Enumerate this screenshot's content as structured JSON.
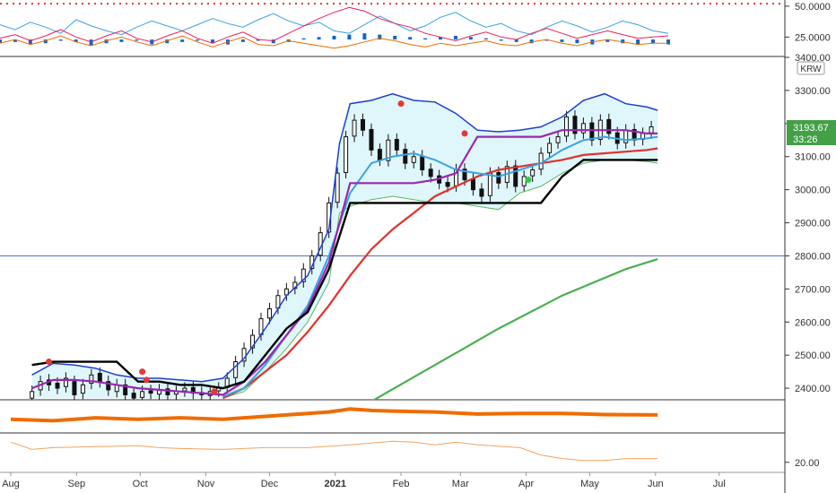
{
  "colors": {
    "blue_band": "#1f3fd1",
    "red_ma": "#e0312d",
    "green_ma": "#4caf50",
    "purple": "#9b27b0",
    "black": "#000000",
    "cloud": "#dff6fb",
    "cyan": "#3ba3e0",
    "orange": "#ef6c00",
    "price_badge": "#43a047",
    "hline": "#5c6bc0",
    "red_dot": "#e53935",
    "green_dot": "#2ecc40"
  },
  "chart_data": [
    {
      "type": "line",
      "panel": "oscillator-top",
      "ytick_labels": [
        "50.0000",
        "25.0000"
      ],
      "ytick_values": [
        50,
        25
      ],
      "ylim": [
        10,
        55
      ],
      "series": [
        {
          "color": "#3ba3e0",
          "values": [
            35,
            31,
            37,
            33,
            28,
            39,
            34,
            30,
            27,
            33,
            38,
            34,
            30,
            35,
            40,
            36,
            33,
            39,
            44,
            38,
            34,
            37,
            30,
            28,
            35,
            42,
            36,
            30,
            34,
            41,
            45,
            38,
            33,
            36,
            30,
            27,
            33,
            38,
            34,
            29,
            33,
            38,
            35,
            30,
            28
          ]
        },
        {
          "color": "#e91e63",
          "values": [
            24,
            27,
            22,
            26,
            31,
            25,
            21,
            26,
            30,
            24,
            21,
            26,
            30,
            24,
            20,
            25,
            29,
            23,
            22,
            28,
            34,
            40,
            45,
            49,
            46,
            40,
            36,
            33,
            28,
            25,
            22,
            26,
            29,
            25,
            23,
            28,
            32,
            28,
            24,
            27,
            30,
            27,
            24,
            25,
            26
          ]
        },
        {
          "color": "#ef6c00",
          "values": [
            20,
            23,
            19,
            22,
            26,
            21,
            18,
            22,
            25,
            21,
            18,
            22,
            26,
            21,
            17,
            21,
            25,
            19,
            18,
            22,
            20,
            18,
            16,
            18,
            21,
            24,
            22,
            19,
            17,
            20,
            18,
            20,
            22,
            19,
            18,
            21,
            23,
            20,
            18,
            21,
            23,
            21,
            19,
            20,
            20
          ]
        }
      ],
      "histogram": [
        -3,
        -2,
        -4,
        -3,
        -1,
        -2,
        -5,
        -3,
        -2,
        -1,
        -4,
        -3,
        -2,
        -1,
        -3,
        -4,
        -2,
        -1,
        -3,
        -2,
        1,
        2,
        3,
        4,
        5,
        4,
        3,
        2,
        1,
        2,
        3,
        2,
        1,
        -1,
        -2,
        -3,
        -1,
        -2,
        -3,
        -4,
        -2,
        -3,
        -4,
        -3,
        -4
      ],
      "reference_line": 52
    },
    {
      "type": "line",
      "panel": "price",
      "currency_label": "KRW",
      "ytick_labels": [
        "3400.00",
        "3300.00",
        "3200.00",
        "3100.00",
        "3000.00",
        "2900.00",
        "2800.00",
        "2700.00",
        "2600.00",
        "2500.00",
        "2400.00"
      ],
      "ytick_values": [
        3400,
        3300,
        3200,
        3100,
        3000,
        2900,
        2800,
        2700,
        2600,
        2500,
        2400
      ],
      "ylim": [
        2365,
        3400
      ],
      "xlim": [
        0,
        310
      ],
      "x_axis_labels": [
        "Aug",
        "Sep",
        "Oct",
        "Nov",
        "Dec",
        "2021",
        "Feb",
        "Mar",
        "Apr",
        "May",
        "Jun",
        "Jul"
      ],
      "x_axis_positions": [
        0,
        31,
        61,
        92,
        122,
        153,
        184,
        212,
        243,
        273,
        304,
        334
      ],
      "last_price": "3193.67",
      "countdown": "33:26",
      "horizontal_line": 2800,
      "candle_days": [
        10,
        14,
        18,
        22,
        26,
        30,
        34,
        38,
        42,
        46,
        50,
        54,
        58,
        62,
        66,
        70,
        74,
        78,
        82,
        86,
        90,
        94,
        98,
        102,
        106,
        110,
        114,
        118,
        122,
        126,
        130,
        134,
        138,
        142,
        146,
        150,
        154,
        158,
        162,
        166,
        170,
        174,
        178,
        182,
        186,
        190,
        194,
        198,
        202,
        206,
        210,
        214,
        218,
        222,
        226,
        230,
        234,
        238,
        242,
        246,
        250,
        254,
        258,
        262,
        266,
        270,
        274,
        278,
        282,
        286,
        290,
        294,
        298,
        302
      ],
      "candle_close": [
        2390,
        2420,
        2410,
        2400,
        2430,
        2380,
        2410,
        2440,
        2420,
        2395,
        2410,
        2380,
        2370,
        2390,
        2385,
        2395,
        2380,
        2390,
        2400,
        2385,
        2380,
        2390,
        2400,
        2430,
        2480,
        2520,
        2560,
        2610,
        2640,
        2680,
        2700,
        2720,
        2760,
        2800,
        2870,
        2960,
        3050,
        3160,
        3210,
        3180,
        3120,
        3090,
        3150,
        3120,
        3080,
        3100,
        3060,
        3040,
        3020,
        3010,
        3060,
        3030,
        3000,
        2980,
        3050,
        3020,
        3070,
        3010,
        3040,
        3060,
        3110,
        3140,
        3160,
        3220,
        3170,
        3200,
        3150,
        3210,
        3170,
        3140,
        3180,
        3150,
        3170,
        3190
      ],
      "candle_open": [
        2370,
        2395,
        2425,
        2415,
        2405,
        2420,
        2385,
        2415,
        2445,
        2420,
        2390,
        2410,
        2385,
        2372,
        2392,
        2382,
        2398,
        2382,
        2392,
        2402,
        2387,
        2378,
        2392,
        2402,
        2432,
        2482,
        2522,
        2562,
        2612,
        2642,
        2682,
        2702,
        2722,
        2762,
        2802,
        2872,
        2962,
        3052,
        3162,
        3212,
        3182,
        3122,
        3088,
        3152,
        3122,
        3082,
        3102,
        3062,
        3042,
        3022,
        3012,
        3062,
        3032,
        3002,
        2982,
        3052,
        3022,
        3072,
        3012,
        3042,
        3062,
        3112,
        3142,
        3162,
        3222,
        3172,
        3202,
        3152,
        3212,
        3172,
        3142,
        3182,
        3152,
        3172
      ],
      "series": [
        {
          "color": "#1f3fd1",
          "x": [
            10,
            20,
            30,
            40,
            50,
            60,
            70,
            80,
            90,
            100,
            110,
            120,
            130,
            140,
            150,
            155,
            160,
            170,
            180,
            190,
            200,
            210,
            220,
            230,
            240,
            250,
            260,
            270,
            280,
            290,
            300,
            305
          ],
          "values": [
            2440,
            2475,
            2470,
            2460,
            2440,
            2430,
            2430,
            2425,
            2420,
            2430,
            2490,
            2580,
            2680,
            2740,
            2880,
            3140,
            3260,
            3270,
            3290,
            3270,
            3265,
            3230,
            3180,
            3175,
            3180,
            3190,
            3220,
            3270,
            3290,
            3260,
            3250,
            3240
          ]
        },
        {
          "color": "#5eb75e",
          "x": [
            100,
            110,
            120,
            130,
            140,
            150,
            155,
            160,
            170,
            180,
            190,
            200,
            210,
            220,
            230,
            240,
            250,
            260,
            270,
            280,
            290,
            300,
            305
          ],
          "values": [
            2370,
            2390,
            2450,
            2520,
            2600,
            2720,
            2930,
            2950,
            2970,
            2980,
            2970,
            2960,
            2960,
            2950,
            2940,
            2990,
            3010,
            3050,
            3080,
            3090,
            3090,
            3085,
            3080
          ]
        },
        {
          "color": "#e0312d",
          "x": [
            100,
            110,
            120,
            130,
            140,
            150,
            160,
            170,
            180,
            190,
            200,
            210,
            220,
            230,
            240,
            250,
            260,
            270,
            280,
            290,
            300,
            305
          ],
          "values": [
            2370,
            2400,
            2450,
            2500,
            2570,
            2650,
            2740,
            2820,
            2880,
            2930,
            2980,
            3010,
            3040,
            3060,
            3070,
            3080,
            3090,
            3105,
            3110,
            3115,
            3120,
            3125
          ]
        },
        {
          "color": "#4caf50",
          "x": [
            170,
            200,
            230,
            260,
            290,
            305
          ],
          "values": [
            2360,
            2470,
            2580,
            2680,
            2760,
            2790
          ]
        },
        {
          "color": "#3ba3e0",
          "x": [
            100,
            110,
            120,
            130,
            140,
            150,
            160,
            170,
            180,
            190,
            200,
            210,
            220,
            230,
            240,
            250,
            260,
            270,
            280,
            290,
            300,
            305
          ],
          "values": [
            2375,
            2400,
            2470,
            2560,
            2650,
            2800,
            2990,
            3080,
            3100,
            3110,
            3090,
            3060,
            3050,
            3040,
            3060,
            3080,
            3120,
            3150,
            3160,
            3150,
            3155,
            3160
          ]
        },
        {
          "color": "#9b27b0",
          "x": [
            10,
            20,
            30,
            40,
            50,
            60,
            70,
            80,
            90,
            100,
            110,
            120,
            130,
            140,
            150,
            160,
            170,
            180,
            190,
            200,
            210,
            220,
            230,
            240,
            250,
            260,
            270,
            280,
            290,
            300,
            305
          ],
          "values": [
            2400,
            2425,
            2425,
            2420,
            2410,
            2400,
            2395,
            2390,
            2385,
            2380,
            2420,
            2480,
            2560,
            2640,
            2780,
            3020,
            3020,
            3020,
            3020,
            3030,
            3050,
            3160,
            3160,
            3160,
            3160,
            3180,
            3180,
            3180,
            3180,
            3170,
            3170
          ]
        },
        {
          "color": "#000000",
          "x": [
            10,
            20,
            30,
            40,
            50,
            60,
            70,
            80,
            90,
            100,
            110,
            120,
            130,
            140,
            150,
            160,
            170,
            180,
            190,
            200,
            210,
            220,
            230,
            240,
            250,
            260,
            270,
            280,
            290,
            300,
            305
          ],
          "values": [
            2470,
            2480,
            2480,
            2480,
            2480,
            2420,
            2420,
            2410,
            2410,
            2400,
            2420,
            2500,
            2580,
            2630,
            2760,
            2960,
            2960,
            2960,
            2960,
            2960,
            2960,
            2960,
            2960,
            2960,
            2960,
            3040,
            3090,
            3090,
            3090,
            3090,
            3090
          ]
        }
      ],
      "markers": [
        {
          "x": 18,
          "y": 2480,
          "kind": "red"
        },
        {
          "x": 62,
          "y": 2450,
          "kind": "red"
        },
        {
          "x": 64,
          "y": 2425,
          "kind": "red"
        },
        {
          "x": 96,
          "y": 2390,
          "kind": "red"
        },
        {
          "x": 184,
          "y": 3260,
          "kind": "red"
        },
        {
          "x": 214,
          "y": 3170,
          "kind": "red"
        },
        {
          "x": 244,
          "y": 3030,
          "kind": "green"
        }
      ]
    },
    {
      "type": "line",
      "panel": "indicator-mid",
      "ylim": [
        0,
        10
      ],
      "x": [
        0,
        20,
        40,
        60,
        80,
        100,
        120,
        140,
        150,
        160,
        170,
        180,
        200,
        220,
        240,
        260,
        280,
        305
      ],
      "series": [
        {
          "color": "#ef6c00",
          "values": [
            4,
            3.5,
            4.5,
            4,
            4.5,
            4,
            5,
            6,
            6.5,
            7.5,
            7,
            6.8,
            6.5,
            5.8,
            6,
            6,
            5.6,
            5.5
          ]
        }
      ]
    },
    {
      "type": "line",
      "panel": "indicator-bottom",
      "ytick_labels": [
        "20.00"
      ],
      "ytick_values": [
        20
      ],
      "ylim": [
        15,
        35
      ],
      "x": [
        0,
        10,
        20,
        40,
        60,
        70,
        80,
        100,
        120,
        140,
        160,
        180,
        190,
        200,
        210,
        220,
        240,
        250,
        260,
        270,
        280,
        290,
        305
      ],
      "series": [
        {
          "color": "#f4a460",
          "values": [
            31,
            27,
            28,
            28.5,
            29,
            28,
            27.5,
            27,
            28,
            28,
            29.5,
            31.5,
            31,
            29.5,
            31,
            29.5,
            28,
            24,
            22,
            21,
            21,
            22,
            22
          ]
        }
      ]
    }
  ]
}
